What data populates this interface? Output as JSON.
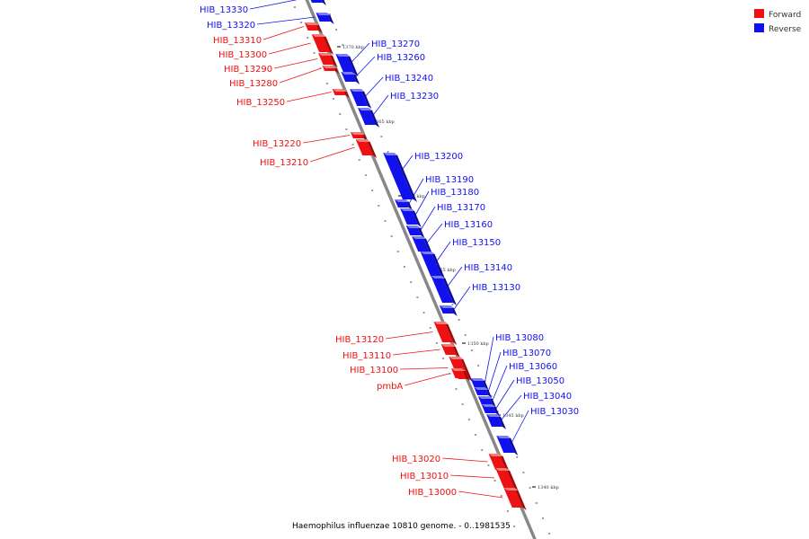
{
  "colors": {
    "forward": "#ee1111",
    "reverse": "#1111ee",
    "backbone": "#888888"
  },
  "legend": [
    {
      "label": "Forward",
      "color": "#ee1111"
    },
    {
      "label": "Reverse",
      "color": "#1111ee"
    }
  ],
  "caption": "Haemophilus influenzae 10810 genome. - 0..1981535",
  "scale_ticks": [
    "1370 kbp",
    "1365 kbp",
    "1360 kbp",
    "1355 kbp",
    "1350 kbp",
    "1345 kbp",
    "1340 kbp"
  ],
  "genes": [
    {
      "label": "HIB_13330",
      "strand": "reverse"
    },
    {
      "label": "HIB_13320",
      "strand": "reverse"
    },
    {
      "label": "HIB_13310",
      "strand": "forward"
    },
    {
      "label": "HIB_13300",
      "strand": "forward"
    },
    {
      "label": "HIB_13290",
      "strand": "forward"
    },
    {
      "label": "HIB_13280",
      "strand": "forward"
    },
    {
      "label": "HIB_13270",
      "strand": "reverse"
    },
    {
      "label": "HIB_13260",
      "strand": "reverse"
    },
    {
      "label": "HIB_13250",
      "strand": "forward"
    },
    {
      "label": "HIB_13240",
      "strand": "reverse"
    },
    {
      "label": "HIB_13230",
      "strand": "reverse"
    },
    {
      "label": "HIB_13220",
      "strand": "forward"
    },
    {
      "label": "HIB_13210",
      "strand": "forward"
    },
    {
      "label": "HIB_13200",
      "strand": "reverse"
    },
    {
      "label": "HIB_13190",
      "strand": "reverse"
    },
    {
      "label": "HIB_13180",
      "strand": "reverse"
    },
    {
      "label": "HIB_13170",
      "strand": "reverse"
    },
    {
      "label": "HIB_13160",
      "strand": "reverse"
    },
    {
      "label": "HIB_13150",
      "strand": "reverse"
    },
    {
      "label": "HIB_13140",
      "strand": "reverse"
    },
    {
      "label": "HIB_13130",
      "strand": "reverse"
    },
    {
      "label": "HIB_13120",
      "strand": "forward"
    },
    {
      "label": "HIB_13110",
      "strand": "forward"
    },
    {
      "label": "HIB_13100",
      "strand": "forward"
    },
    {
      "label": "pmbA",
      "strand": "forward"
    },
    {
      "label": "HIB_13080",
      "strand": "reverse"
    },
    {
      "label": "HIB_13070",
      "strand": "reverse"
    },
    {
      "label": "HIB_13060",
      "strand": "reverse"
    },
    {
      "label": "HIB_13050",
      "strand": "reverse"
    },
    {
      "label": "HIB_13040",
      "strand": "reverse"
    },
    {
      "label": "HIB_13030",
      "strand": "reverse"
    },
    {
      "label": "HIB_13020",
      "strand": "forward"
    },
    {
      "label": "HIB_13010",
      "strand": "forward"
    },
    {
      "label": "HIB_13000",
      "strand": "forward"
    }
  ]
}
